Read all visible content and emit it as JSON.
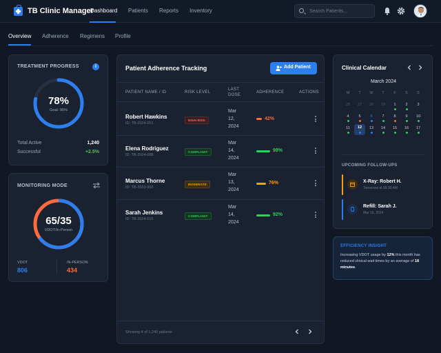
{
  "app": {
    "title": "TB Clinic Manager"
  },
  "nav": {
    "items": [
      "Dashboard",
      "Patients",
      "Reports",
      "Inventory"
    ]
  },
  "search": {
    "placeholder": "Search Patients..."
  },
  "subtabs": [
    "Overview",
    "Adherence",
    "Regimens",
    "Profile"
  ],
  "treatment": {
    "title": "TREATMENT PROGRESS",
    "percent": "78%",
    "goal": "Goal: 95%",
    "progress": 0.78,
    "total_label": "Total Active",
    "total_value": "1,240",
    "success_label": "Successful",
    "success_value": "+2.5%"
  },
  "monitoring": {
    "title": "MONITORING MODE",
    "ratio": "65/35",
    "sub": "VDOT/In-Person",
    "vdot_fraction": 0.65,
    "vdot_label": "VDOT",
    "vdot_value": "806",
    "inperson_label": "IN-PERSON",
    "inperson_value": "434"
  },
  "adherence": {
    "title": "Patient Adherence Tracking",
    "add_label": "Add Patient",
    "columns": [
      "PATIENT NAME / ID",
      "RISK LEVEL",
      "LAST DOSE",
      "ADHERENCE",
      "ACTIONS"
    ],
    "rows": [
      {
        "name": "Robert Hawkins",
        "id": "ID: TB-2024-051",
        "risk": "HIGH RISK",
        "date": "Mar\n12,\n2024",
        "pct": "42%",
        "value": 0.42,
        "color": "#ff6b3d"
      },
      {
        "name": "Elena Rodriguez",
        "id": "ID: TB-2024-088",
        "risk": "COMPLIANT",
        "date": "Mar\n14,\n2024",
        "pct": "98%",
        "value": 0.98,
        "color": "#30d158"
      },
      {
        "name": "Marcus Thorne",
        "id": "ID: TB-2023-992",
        "risk": "MODERATE",
        "date": "Mar\n13,\n2024",
        "pct": "76%",
        "value": 0.76,
        "color": "#ff9f0a"
      },
      {
        "name": "Sarah Jenkins",
        "id": "ID: TB-2024-015",
        "risk": "COMPLIANT",
        "date": "Mar\n14,\n2024",
        "pct": "92%",
        "value": 0.92,
        "color": "#30d158"
      }
    ],
    "footer": "Showing 4 of 1,240 patients"
  },
  "calendar": {
    "title": "Clinical Calendar",
    "month": "March 2024",
    "weekdays": [
      "M",
      "T",
      "W",
      "T",
      "F",
      "S",
      "S"
    ],
    "days": [
      "26",
      "27",
      "28",
      "29",
      "1",
      "2",
      "3",
      "4",
      "5",
      "6",
      "7",
      "8",
      "9",
      "10",
      "11",
      "12",
      "13",
      "14",
      "15",
      "16",
      "17"
    ],
    "followups_title": "UPCOMING FOLLOW-UPS",
    "followups": [
      {
        "title": "X-Ray: Robert H.",
        "sub": "Tomorrow at 09:30 AM",
        "color": "#ff9f0a"
      },
      {
        "title": "Refill: Sarah J.",
        "sub": "Mar 16, 2024",
        "color": "#2d7ff0"
      }
    ]
  },
  "insight": {
    "title": "EFFICIENCY INSIGHT",
    "t1": "Increasing VDOT usage by ",
    "b1": "12%",
    "t2": " this month has reduced clinical wait times by an average of ",
    "b2": "18 minutes",
    "t3": "."
  }
}
